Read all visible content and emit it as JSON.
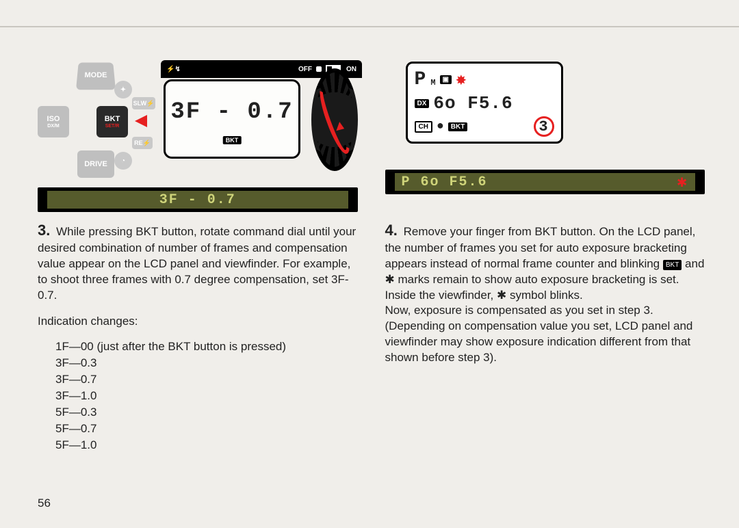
{
  "page_number": "56",
  "dpad": {
    "top": "MODE",
    "left": "ISO",
    "left_sub": "DX/M",
    "right": "BKT",
    "right_sub": "SET/R",
    "bottom": "DRIVE",
    "mini_top": "✦",
    "mini_right_top": "SLW⚡",
    "mini_right_bot": "RE⚡",
    "mini_bot": "◔"
  },
  "lcd_topbar": {
    "flash": "⚡↯",
    "off": "OFF",
    "on": "ON"
  },
  "lcd1": {
    "value": "3F - 0.7",
    "tag": "BKT"
  },
  "vf1": "3F - 0.7",
  "lcd2": {
    "row1_a": "P",
    "row1_sub": "M",
    "row1_icon": "▣",
    "row2_dx": "DX",
    "row2_val": "6o  F5.6",
    "row3_ch": "CH",
    "row3_rec": "●",
    "row3_bkt": "BKT",
    "row3_num": "3"
  },
  "vf2": {
    "text": "P  6o  F5.6",
    "flash": "✱"
  },
  "step3": {
    "num": "3.",
    "body": "While pressing BKT button, rotate command dial until your desired combination of number of frames and compensation value appear on the LCD panel and viewfinder. For example, to shoot three frames with 0.7 degree compensation, set 3F-0.7.",
    "ind_label": "Indication changes:",
    "ind": [
      "1F—00 (just after the BKT button is pressed)",
      "3F—0.3",
      "3F—0.7",
      "3F—1.0",
      "5F—0.3",
      "5F—0.7",
      "5F—1.0"
    ]
  },
  "step4": {
    "num": "4.",
    "body_a": "Remove your finger from BKT button. On the LCD panel, the number of frames you set for auto exposure bracketing appears instead of normal frame counter and blinking ",
    "bkt": "BKT",
    "body_b": " and ✱ marks remain to show auto exposure bracketing is set. Inside the viewfinder, ✱ symbol blinks.",
    "body_c": "Now, exposure is compensated as you set in step 3. (Depending on compensation value you set, LCD panel and viewfinder may show exposure indication different from that shown before step 3)."
  },
  "colors": {
    "red": "#e62020",
    "olive_bg": "#565b2c",
    "olive_fg": "#cfd47a"
  }
}
